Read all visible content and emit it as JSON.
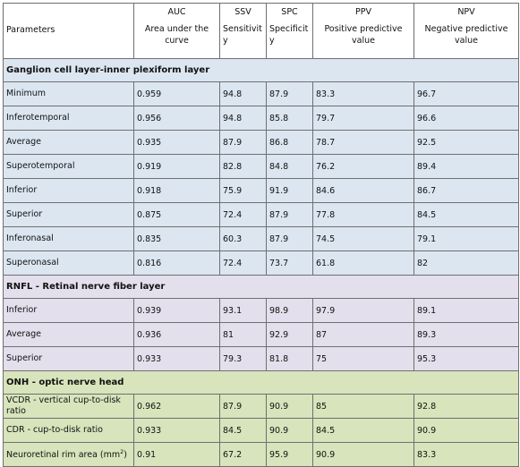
{
  "header": {
    "parameters": "Parameters",
    "auc": "AUC",
    "auc_sub": "Area under the curve",
    "ssv": "SSV",
    "ssv_sub": "Sensitivity",
    "spc": "SPC",
    "spc_sub": "Specificity",
    "ppv": "PPV",
    "ppv_sub": "Positive predictive value",
    "npv": "NPV",
    "npv_sub": "Negative predictive value"
  },
  "sections": [
    {
      "title": "Ganglion cell layer-inner plexiform layer",
      "color": "#dce6f1",
      "rows": [
        {
          "label": "Minimum",
          "auc": "0.959",
          "ssv": "94.8",
          "spc": "87.9",
          "ppv": "83.3",
          "npv": "96.7"
        },
        {
          "label": "Inferotemporal",
          "auc": "0.956",
          "ssv": "94.8",
          "spc": "85.8",
          "ppv": "79.7",
          "npv": "96.6"
        },
        {
          "label": "Average",
          "auc": "0.935",
          "ssv": "87.9",
          "spc": "86.8",
          "ppv": "78.7",
          "npv": "92.5"
        },
        {
          "label": "Superotemporal",
          "auc": "0.919",
          "ssv": "82.8",
          "spc": "84.8",
          "ppv": "76.2",
          "npv": "89.4"
        },
        {
          "label": " Inferior",
          "auc": "0.918",
          "ssv": "75.9",
          "spc": "91.9",
          "ppv": "84.6",
          "npv": "86.7"
        },
        {
          "label": "Superior",
          "auc": "0.875",
          "ssv": "72.4",
          "spc": "87.9",
          "ppv": "77.8",
          "npv": "84.5"
        },
        {
          "label": "Inferonasal",
          "auc": "0.835",
          "ssv": "60.3",
          "spc": "87.9",
          "ppv": "74.5",
          "npv": "79.1"
        },
        {
          "label": " Superonasal",
          "auc": "0.816",
          "ssv": "72.4",
          "spc": "73.7",
          "ppv": "61.8",
          "npv": "82"
        }
      ]
    },
    {
      "title": "RNFL - Retinal nerve fiber layer",
      "color": "#e4dfec",
      "rows": [
        {
          "label": " Inferior",
          "auc": "0.939",
          "ssv": "93.1",
          "spc": "98.9",
          "ppv": "97.9",
          "npv": "89.1"
        },
        {
          "label": "Average",
          "auc": "0.936",
          "ssv": "81",
          "spc": "92.9",
          "ppv": "87",
          "npv": "89.3"
        },
        {
          "label": "Superior",
          "auc": "0.933",
          "ssv": "79.3",
          "spc": "81.8",
          "ppv": "75",
          "npv": "95.3"
        }
      ]
    },
    {
      "title": "ONH - optic nerve head",
      "color": "#d8e4bc",
      "rows": [
        {
          "label": "VCDR - vertical cup-to-disk ratio",
          "auc": "0.962",
          "ssv": "87.9",
          "spc": "90.9",
          "ppv": "85",
          "npv": "92.8"
        },
        {
          "label": "CDR - cup-to-disk ratio",
          "auc": "0.933",
          "ssv": "84.5",
          "spc": "90.9",
          "ppv": "84.5",
          "npv": "90.9"
        },
        {
          "label": "Neuroretinal rim area (mm",
          "label_sup": "2",
          "label_suffix": ")",
          "auc": "0.91",
          "ssv": "67.2",
          "spc": "95.9",
          "ppv": "90.9",
          "npv": "83.3"
        }
      ]
    }
  ]
}
